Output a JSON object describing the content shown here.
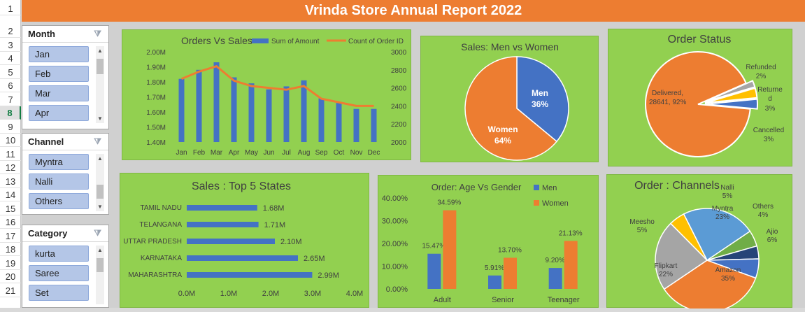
{
  "title": "Vrinda Store Annual Report 2022",
  "rows": [
    "1",
    "2",
    "3",
    "4",
    "5",
    "6",
    "7",
    "8",
    "9",
    "10",
    "11",
    "12",
    "13",
    "14",
    "15",
    "16",
    "17",
    "18",
    "19",
    "20",
    "21"
  ],
  "slicers": {
    "month": {
      "title": "Month",
      "items": [
        "Jan",
        "Feb",
        "Mar",
        "Apr"
      ]
    },
    "channel": {
      "title": "Channel",
      "items": [
        "Myntra",
        "Nalli",
        "Others"
      ]
    },
    "category": {
      "title": "Category",
      "items": [
        "kurta",
        "Saree",
        "Set"
      ]
    }
  },
  "colors": {
    "orange": "#ed7d31",
    "blue": "#4472c4",
    "green": "#92d050",
    "gray": "#a5a5a5",
    "gold": "#ffc000",
    "navy": "#264478",
    "mid_green": "#70ad47"
  },
  "chart_data": [
    {
      "type": "bar+line",
      "title": "Orders Vs Sales",
      "categories": [
        "Jan",
        "Feb",
        "Mar",
        "Apr",
        "May",
        "Jun",
        "Jul",
        "Aug",
        "Sep",
        "Oct",
        "Nov",
        "Dec"
      ],
      "series": [
        {
          "name": "Sum of Amount",
          "values": [
            1.82,
            1.88,
            1.93,
            1.83,
            1.79,
            1.75,
            1.77,
            1.81,
            1.69,
            1.66,
            1.62,
            1.62
          ]
        },
        {
          "name": "Count of Order ID",
          "values": [
            2700,
            2780,
            2840,
            2680,
            2620,
            2600,
            2580,
            2620,
            2480,
            2440,
            2400,
            2400
          ]
        }
      ],
      "ylim": [
        1.4,
        2.0
      ],
      "ylim2": [
        2000,
        3000
      ],
      "y_ticks": [
        "2.00M",
        "1.90M",
        "1.80M",
        "1.70M",
        "1.60M",
        "1.50M",
        "1.40M"
      ],
      "y2_ticks": [
        "3000",
        "2800",
        "2600",
        "2400",
        "2200",
        "2000"
      ]
    },
    {
      "type": "pie",
      "title": "Sales: Men vs Women",
      "labels": [
        "Men",
        "Women"
      ],
      "values": [
        36,
        64
      ],
      "value_labels": [
        "36%",
        "64%"
      ]
    },
    {
      "type": "pie",
      "title": "Order Status",
      "labels": [
        "Delivered,",
        "Refunded",
        "Returned",
        "Cancelled"
      ],
      "values": [
        92,
        2,
        3,
        3
      ],
      "value_labels": [
        "28641, 92%",
        "2%",
        "3%",
        "3%"
      ]
    },
    {
      "type": "bar",
      "title": "Sales : Top 5 States",
      "categories": [
        "TAMIL NADU",
        "TELANGANA",
        "UTTAR PRADESH",
        "KARNATAKA",
        "MAHARASHTRA"
      ],
      "values": [
        1.68,
        1.71,
        2.1,
        2.65,
        2.99
      ],
      "value_labels": [
        "1.68M",
        "1.71M",
        "2.10M",
        "2.65M",
        "2.99M"
      ],
      "xlim": [
        0,
        4
      ],
      "x_ticks": [
        "0.0M",
        "1.0M",
        "2.0M",
        "3.0M",
        "4.0M"
      ]
    },
    {
      "type": "bar",
      "title": "Order: Age Vs Gender",
      "categories": [
        "Adult",
        "Senior",
        "Teenager"
      ],
      "series": [
        {
          "name": "Men",
          "values": [
            15.47,
            5.91,
            9.2
          ],
          "value_labels": [
            "15.47%",
            "5.91%",
            "9.20%"
          ]
        },
        {
          "name": "Women",
          "values": [
            34.59,
            13.7,
            21.13
          ],
          "value_labels": [
            "34.59%",
            "13.70%",
            "21.13%"
          ]
        }
      ],
      "ylim": [
        0,
        40
      ],
      "y_ticks": [
        "40.00%",
        "30.00%",
        "20.00%",
        "10.00%",
        "0.00%"
      ]
    },
    {
      "type": "pie",
      "title": "Order : Channels",
      "labels": [
        "Amazon",
        "Flipkart",
        "Meesho",
        "Myntra",
        "Nalli",
        "Others",
        "Ajio"
      ],
      "values": [
        35,
        22,
        5,
        23,
        5,
        4,
        6
      ],
      "value_labels": [
        "35%",
        "22%",
        "5%",
        "23%",
        "5%",
        "4%",
        "6%"
      ]
    }
  ]
}
